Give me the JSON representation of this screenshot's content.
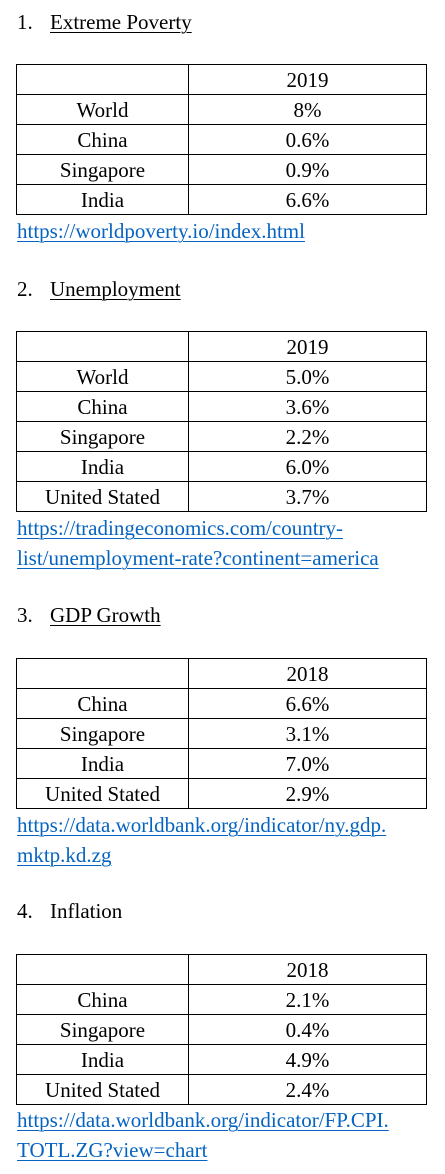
{
  "sections": [
    {
      "number": "1.",
      "title": "Extreme Poverty",
      "year": "2019",
      "rows": [
        {
          "country": "World",
          "value": "8%"
        },
        {
          "country": "China",
          "value": "0.6%"
        },
        {
          "country": "Singapore",
          "value": "0.9%"
        },
        {
          "country": "India",
          "value": "6.6%"
        }
      ],
      "link": [
        "https://worldpoverty.io/index.html"
      ]
    },
    {
      "number": "2.",
      "title": "Unemployment",
      "year": "2019",
      "rows": [
        {
          "country": "World",
          "value": "5.0%"
        },
        {
          "country": "China",
          "value": "3.6%"
        },
        {
          "country": "Singapore",
          "value": "2.2%"
        },
        {
          "country": "India",
          "value": "6.0%"
        },
        {
          "country": "United Stated",
          "value": "3.7%"
        }
      ],
      "link": [
        "https://tradingeconomics.com/country-",
        "list/unemployment-rate?continent=america"
      ]
    },
    {
      "number": "3.",
      "title": "GDP Growth",
      "year": "2018",
      "rows": [
        {
          "country": "China",
          "value": "6.6%"
        },
        {
          "country": "Singapore",
          "value": "3.1%"
        },
        {
          "country": "India",
          "value": "7.0%"
        },
        {
          "country": "United Stated",
          "value": "2.9%"
        }
      ],
      "link": [
        "https://data.worldbank.org/indicator/ny.gdp.",
        "mktp.kd.zg"
      ]
    },
    {
      "number": "4.",
      "title": "Inflation",
      "year": "2018",
      "rows": [
        {
          "country": "China",
          "value": "2.1%"
        },
        {
          "country": "Singapore",
          "value": "0.4%"
        },
        {
          "country": "India",
          "value": "4.9%"
        },
        {
          "country": "United Stated",
          "value": "2.4%"
        }
      ],
      "link": [
        "https://data.worldbank.org/indicator/FP.CPI.",
        "TOTL.ZG?view=chart"
      ]
    }
  ]
}
